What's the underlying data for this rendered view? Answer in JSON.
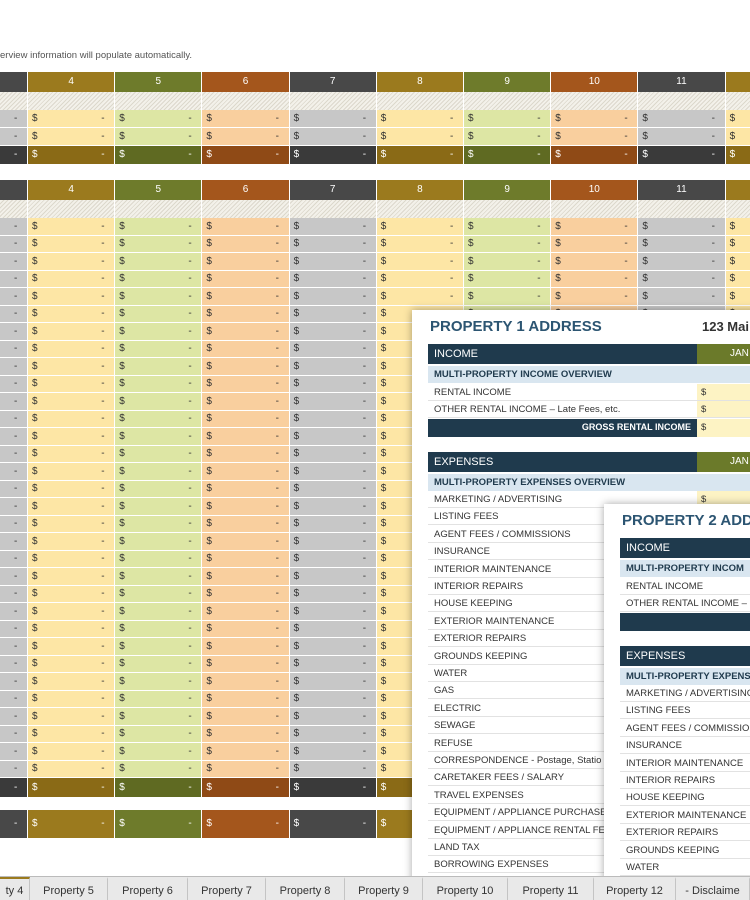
{
  "note": "erview information will populate automatically.",
  "cell_currency": "$",
  "cell_empty": "-",
  "tables": [
    {
      "columns": [
        "4",
        "5",
        "6",
        "7",
        "8",
        "9",
        "10",
        "11"
      ]
    },
    {
      "columns": [
        "4",
        "5",
        "6",
        "7",
        "8",
        "9",
        "10",
        "11"
      ]
    }
  ],
  "panels": [
    {
      "title": "PROPERTY 1 ADDRESS",
      "address": "123 Mai",
      "income_header": "INCOME",
      "income_month": "JAN",
      "income_overview": "MULTI-PROPERTY INCOME OVERVIEW",
      "income_rows": [
        "RENTAL INCOME",
        "OTHER RENTAL INCOME  – Late Fees, etc."
      ],
      "gross_label": "GROSS RENTAL INCOME",
      "expenses_header": "EXPENSES",
      "expenses_month": "JAN",
      "expenses_overview": "MULTI-PROPERTY EXPENSES OVERVIEW",
      "expense_rows": [
        "MARKETING / ADVERTISING",
        "LISTING FEES",
        "AGENT FEES / COMMISSIONS",
        "INSURANCE",
        "INTERIOR MAINTENANCE",
        "INTERIOR REPAIRS",
        "HOUSE KEEPING",
        "EXTERIOR MAINTENANCE",
        "EXTERIOR REPAIRS",
        "GROUNDS KEEPING",
        "WATER",
        "GAS",
        "ELECTRIC",
        "SEWAGE",
        "REFUSE",
        "CORRESPONDENCE - Postage, Statio",
        "CARETAKER FEES / SALARY",
        "TRAVEL EXPENSES",
        "EQUIPMENT / APPLIANCE PURCHASE",
        "EQUIPMENT / APPLIANCE RENTAL FEE",
        "LAND TAX",
        "BORROWING EXPENSES"
      ]
    },
    {
      "title": "PROPERTY 2 ADD",
      "income_header": "INCOME",
      "income_overview": "MULTI-PROPERTY INCOM",
      "income_rows": [
        "RENTAL INCOME",
        "OTHER RENTAL INCOME  – I"
      ],
      "expenses_header": "EXPENSES",
      "expenses_overview": "MULTI-PROPERTY EXPENS",
      "expense_rows": [
        "MARKETING / ADVERTISING",
        "LISTING FEES",
        "AGENT FEES / COMMISSION",
        "INSURANCE",
        "INTERIOR MAINTENANCE",
        "INTERIOR REPAIRS",
        "HOUSE KEEPING",
        "EXTERIOR MAINTENANCE",
        "EXTERIOR REPAIRS",
        "GROUNDS KEEPING",
        "WATER"
      ]
    }
  ],
  "tabs": [
    "ty 4",
    "Property 5",
    "Property 6",
    "Property 7",
    "Property 8",
    "Property 9",
    "Property 10",
    "Property 11",
    "Property 12",
    "- Disclaime"
  ]
}
